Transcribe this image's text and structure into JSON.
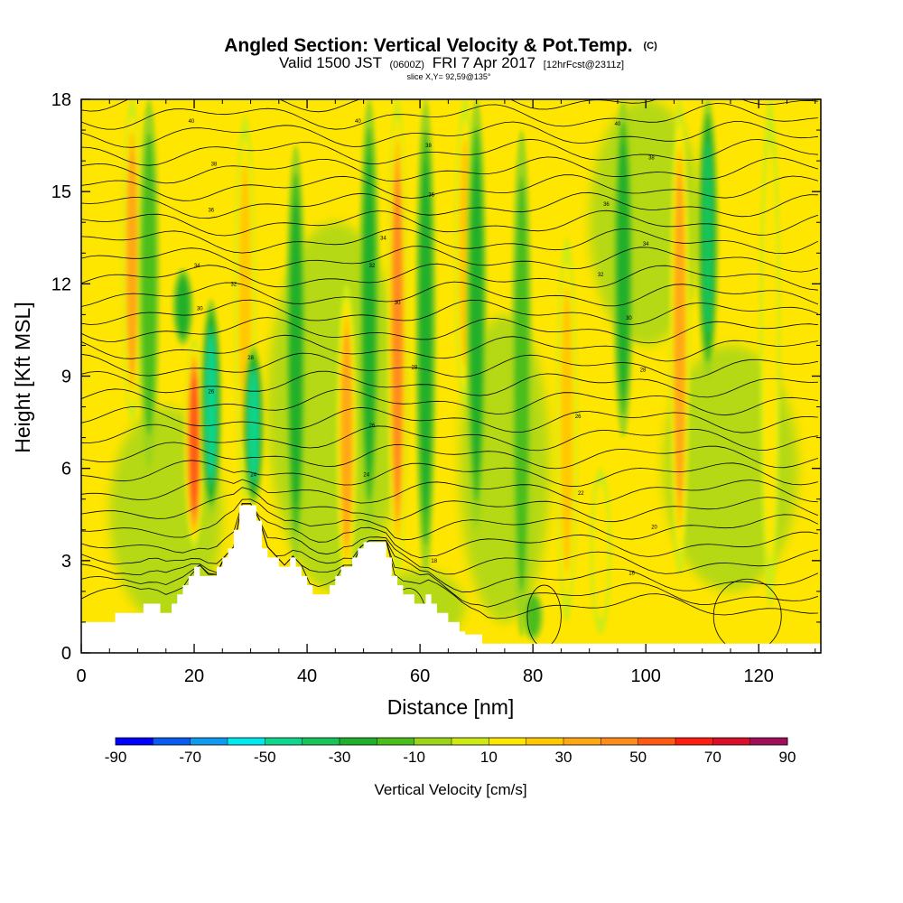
{
  "title": {
    "main": "Angled Section: Vertical Velocity & Pot.Temp.",
    "main_sup": "(C)",
    "valid_prefix": "Valid 1500 JST",
    "valid_utc": "(0600Z)",
    "valid_date": "FRI 7 Apr 2017",
    "forecast": "[12hrFcst@2311z]",
    "slice": "slice X,Y= 92,59@135°"
  },
  "chart_data": {
    "type": "heatmap",
    "xlabel": "Distance [nm]",
    "ylabel": "Height [Kft MSL]",
    "xlim": [
      0,
      131
    ],
    "ylim": [
      0,
      18
    ],
    "x_ticks": [
      0,
      20,
      40,
      60,
      80,
      100,
      120
    ],
    "y_ticks": [
      0,
      3,
      6,
      9,
      12,
      15,
      18
    ],
    "colorbar": {
      "title": "Vertical Velocity [cm/s]",
      "levels": [
        -90,
        -80,
        -70,
        -60,
        -50,
        -40,
        -30,
        -20,
        -10,
        0,
        10,
        20,
        30,
        40,
        50,
        60,
        70,
        80,
        90
      ],
      "tick_labels": [
        -90,
        -70,
        -50,
        -30,
        -10,
        10,
        30,
        50,
        70,
        90
      ],
      "colors": [
        "#0000ff",
        "#0a5cf0",
        "#0f9af0",
        "#00e8f0",
        "#10d58c",
        "#16c45a",
        "#20b02b",
        "#4cbe1c",
        "#9cd41a",
        "#cdea14",
        "#ffe600",
        "#ffc800",
        "#ffa814",
        "#ff8c1a",
        "#ff5a14",
        "#ff1e10",
        "#d8102a",
        "#a0105a",
        "#6b0f96"
      ]
    },
    "terrain_heights_kft": [
      [
        0,
        1.0
      ],
      [
        5,
        1.0
      ],
      [
        6,
        1.3
      ],
      [
        10,
        1.3
      ],
      [
        11,
        1.6
      ],
      [
        13,
        1.6
      ],
      [
        14,
        1.3
      ],
      [
        15,
        1.3
      ],
      [
        16,
        1.6
      ],
      [
        17,
        1.9
      ],
      [
        18,
        2.2
      ],
      [
        19,
        2.5
      ],
      [
        20,
        2.8
      ],
      [
        21,
        2.5
      ],
      [
        23,
        2.5
      ],
      [
        24,
        2.8
      ],
      [
        25,
        3.1
      ],
      [
        26,
        3.4
      ],
      [
        27,
        4.0
      ],
      [
        28,
        4.8
      ],
      [
        30,
        4.8
      ],
      [
        31,
        4.3
      ],
      [
        32,
        3.4
      ],
      [
        33,
        3.1
      ],
      [
        34,
        3.1
      ],
      [
        35,
        2.8
      ],
      [
        36,
        2.8
      ],
      [
        37,
        3.1
      ],
      [
        38,
        2.8
      ],
      [
        39,
        2.5
      ],
      [
        40,
        2.2
      ],
      [
        41,
        1.9
      ],
      [
        43,
        1.9
      ],
      [
        44,
        2.2
      ],
      [
        45,
        2.5
      ],
      [
        46,
        2.8
      ],
      [
        47,
        2.8
      ],
      [
        48,
        3.1
      ],
      [
        49,
        3.4
      ],
      [
        50,
        3.6
      ],
      [
        53,
        3.6
      ],
      [
        54,
        3.1
      ],
      [
        55,
        2.5
      ],
      [
        56,
        2.2
      ],
      [
        57,
        1.9
      ],
      [
        58,
        1.9
      ],
      [
        59,
        1.6
      ],
      [
        60,
        1.6
      ],
      [
        61,
        1.9
      ],
      [
        62,
        1.6
      ],
      [
        63,
        1.3
      ],
      [
        64,
        1.3
      ],
      [
        65,
        1.0
      ],
      [
        66,
        1.0
      ],
      [
        67,
        0.7
      ],
      [
        68,
        0.6
      ],
      [
        70,
        0.6
      ],
      [
        71,
        0.3
      ],
      [
        131,
        0.3
      ]
    ],
    "updraft_bands": [
      {
        "x": 20,
        "y0": 3.4,
        "y1": 10.2,
        "value": 60
      },
      {
        "x": 29,
        "y0": 5.0,
        "y1": 17.5,
        "value": 30
      },
      {
        "x": 47,
        "y0": 2.0,
        "y1": 12.0,
        "value": 40
      },
      {
        "x": 56,
        "y0": 2.4,
        "y1": 18.0,
        "value": 50
      },
      {
        "x": 9,
        "y0": 7.5,
        "y1": 18.0,
        "value": 40
      },
      {
        "x": 86,
        "y0": 1.0,
        "y1": 13.5,
        "value": 35
      },
      {
        "x": 106,
        "y0": 2.5,
        "y1": 18.0,
        "value": 40
      },
      {
        "x": 122,
        "y0": 1.5,
        "y1": 18.0,
        "value": 25
      },
      {
        "x": 92,
        "y0": 0.6,
        "y1": 6.0,
        "value": 25
      },
      {
        "x": 68,
        "y0": 8.0,
        "y1": 18.0,
        "value": 30
      }
    ],
    "downdraft_bands": [
      {
        "x": 23,
        "y0": 4.5,
        "y1": 11.5,
        "value": -55
      },
      {
        "x": 30.5,
        "y0": 4.8,
        "y1": 10.0,
        "value": -55
      },
      {
        "x": 12,
        "y0": 6.0,
        "y1": 18.0,
        "value": -25
      },
      {
        "x": 38,
        "y0": 3.0,
        "y1": 16.5,
        "value": -30
      },
      {
        "x": 51,
        "y0": 4.0,
        "y1": 18.0,
        "value": -30
      },
      {
        "x": 61,
        "y0": 2.5,
        "y1": 18.0,
        "value": -30
      },
      {
        "x": 70,
        "y0": 4.0,
        "y1": 18.0,
        "value": -30
      },
      {
        "x": 78,
        "y0": 0.5,
        "y1": 17.0,
        "value": -25
      },
      {
        "x": 96,
        "y0": 7.0,
        "y1": 18.0,
        "value": -30
      },
      {
        "x": 111,
        "y0": 9.0,
        "y1": 18.0,
        "value": -45
      },
      {
        "x": 18,
        "y0": 10.0,
        "y1": 12.5,
        "value": -30
      },
      {
        "x": 80,
        "y0": 0.4,
        "y1": 2.0,
        "value": -25
      }
    ],
    "contour_labels": [
      {
        "x": 19.5,
        "y": 17.3,
        "text": "40"
      },
      {
        "x": 49,
        "y": 17.3,
        "text": "40"
      },
      {
        "x": 95,
        "y": 17.2,
        "text": "40"
      },
      {
        "x": 23.5,
        "y": 15.9,
        "text": "38"
      },
      {
        "x": 61.5,
        "y": 16.5,
        "text": "38"
      },
      {
        "x": 101,
        "y": 16.1,
        "text": "38"
      },
      {
        "x": 23,
        "y": 14.4,
        "text": "36"
      },
      {
        "x": 62,
        "y": 14.9,
        "text": "36"
      },
      {
        "x": 93,
        "y": 14.6,
        "text": "36"
      },
      {
        "x": 53.5,
        "y": 13.5,
        "text": "34"
      },
      {
        "x": 100,
        "y": 13.3,
        "text": "34"
      },
      {
        "x": 20.5,
        "y": 12.6,
        "text": "34"
      },
      {
        "x": 51.5,
        "y": 12.6,
        "text": "32"
      },
      {
        "x": 27,
        "y": 12.0,
        "text": "32"
      },
      {
        "x": 92,
        "y": 12.3,
        "text": "32"
      },
      {
        "x": 56,
        "y": 11.4,
        "text": "30"
      },
      {
        "x": 21,
        "y": 11.2,
        "text": "30"
      },
      {
        "x": 97,
        "y": 10.9,
        "text": "30"
      },
      {
        "x": 30,
        "y": 9.6,
        "text": "28"
      },
      {
        "x": 59,
        "y": 9.3,
        "text": "28"
      },
      {
        "x": 99.5,
        "y": 9.2,
        "text": "28"
      },
      {
        "x": 23,
        "y": 8.5,
        "text": "26"
      },
      {
        "x": 88,
        "y": 7.7,
        "text": "26"
      },
      {
        "x": 51.5,
        "y": 7.4,
        "text": "26"
      },
      {
        "x": 50.5,
        "y": 5.8,
        "text": "24"
      },
      {
        "x": 30.5,
        "y": 5.8,
        "text": "24"
      },
      {
        "x": 88.5,
        "y": 5.2,
        "text": "22"
      },
      {
        "x": 101.5,
        "y": 4.1,
        "text": "20"
      },
      {
        "x": 62.5,
        "y": 3.0,
        "text": "18"
      },
      {
        "x": 97.5,
        "y": 2.6,
        "text": "16"
      }
    ]
  }
}
